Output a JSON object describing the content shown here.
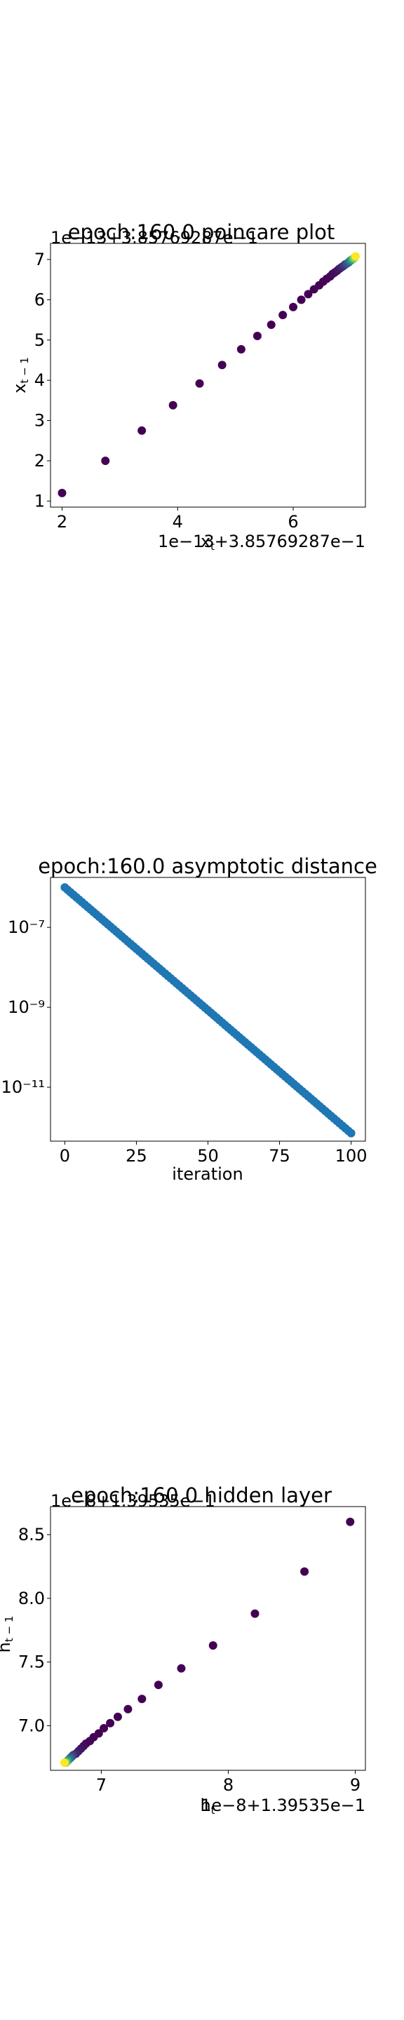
{
  "charts": [
    {
      "title": "epoch:160.0 poincare plot",
      "xlabel": "x_t",
      "ylabel": "x_{t-1}",
      "x_offset_text": "1e−13+3.85769287e−1",
      "y_offset_text": "1e−13+3.85769287e−1",
      "x_ticks": [
        "2",
        "4",
        "6"
      ],
      "y_ticks": [
        "1",
        "2",
        "3",
        "4",
        "5",
        "6",
        "7"
      ]
    },
    {
      "title": "epoch:160.0 asymptotic distance",
      "xlabel": "iteration",
      "ylabel": "",
      "x_ticks": [
        "0",
        "25",
        "50",
        "75",
        "100"
      ],
      "y_ticks": [
        "10⁻⁷",
        "10⁻⁹",
        "10⁻¹¹"
      ]
    },
    {
      "title": "epoch:160.0 hidden layer",
      "xlabel": "h_t",
      "ylabel": "h_{t-1}",
      "x_offset_text": "1e−8+1.39535e−1",
      "y_offset_text": "1e−8+1.39535e−1",
      "x_ticks": [
        "7",
        "8",
        "9"
      ],
      "y_ticks": [
        "7.0",
        "7.5",
        "8.0",
        "8.5"
      ]
    }
  ],
  "chart_data": [
    {
      "type": "scatter",
      "title": "epoch:160.0 poincare plot",
      "xlabel": "x_t",
      "ylabel": "x_{t-1}",
      "offset": "1e-13+3.85769287e-1",
      "colormap": "viridis (early=purple, last=yellow)",
      "xlim": [
        1.8,
        7.25
      ],
      "ylim": [
        0.85,
        7.4
      ],
      "x": [
        2.0,
        2.75,
        3.38,
        3.92,
        4.38,
        4.77,
        5.1,
        5.38,
        5.62,
        5.82,
        6.0,
        6.14,
        6.26,
        6.36,
        6.45,
        6.52,
        6.58,
        6.64,
        6.68,
        6.72,
        6.76,
        6.79,
        6.82,
        6.85,
        6.88,
        6.9,
        6.93,
        6.96,
        6.98,
        7.0,
        7.02,
        7.04,
        7.06,
        7.08
      ],
      "y": [
        1.2,
        2.0,
        2.75,
        3.38,
        3.92,
        4.38,
        4.77,
        5.1,
        5.38,
        5.62,
        5.82,
        6.0,
        6.14,
        6.26,
        6.36,
        6.45,
        6.52,
        6.58,
        6.64,
        6.68,
        6.72,
        6.76,
        6.79,
        6.82,
        6.85,
        6.88,
        6.9,
        6.93,
        6.96,
        6.98,
        7.0,
        7.02,
        7.04,
        7.08
      ]
    },
    {
      "type": "scatter",
      "title": "epoch:160.0 asymptotic distance",
      "xlabel": "iteration",
      "ylabel": "",
      "yscale": "log",
      "color": "#1f77b4",
      "xlim": [
        -5,
        105
      ],
      "ylim_log10": [
        -12.35,
        -5.75
      ],
      "x_range": [
        0,
        100
      ],
      "y_log10_start": -6.0,
      "y_log10_end": -12.15,
      "n_points": 101
    },
    {
      "type": "scatter",
      "title": "epoch:160.0 hidden layer",
      "xlabel": "h_t",
      "ylabel": "h_{t-1}",
      "offset": "1e-8+1.39535e-1",
      "colormap": "viridis (early=purple, last=yellow)",
      "xlim": [
        6.6,
        9.08
      ],
      "ylim": [
        6.65,
        8.72
      ],
      "x": [
        8.96,
        8.6,
        8.21,
        7.88,
        7.63,
        7.45,
        7.32,
        7.21,
        7.13,
        7.07,
        7.02,
        6.98,
        6.94,
        6.91,
        6.88,
        6.86,
        6.84,
        6.82,
        6.8,
        6.78,
        6.77,
        6.76,
        6.75,
        6.74,
        6.73,
        6.72,
        6.71
      ],
      "y": [
        8.6,
        8.21,
        7.88,
        7.63,
        7.45,
        7.32,
        7.21,
        7.13,
        7.07,
        7.02,
        6.98,
        6.94,
        6.91,
        6.88,
        6.86,
        6.84,
        6.82,
        6.8,
        6.78,
        6.77,
        6.76,
        6.75,
        6.74,
        6.73,
        6.72,
        6.71,
        6.71
      ]
    }
  ]
}
